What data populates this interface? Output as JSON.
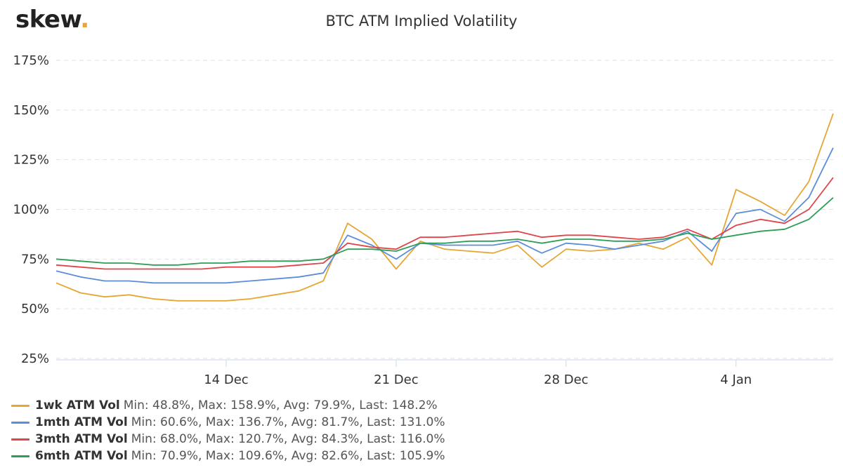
{
  "brand": {
    "name": "skew",
    "dot": "."
  },
  "chart_data": {
    "type": "line",
    "title": "BTC ATM Implied Volatility",
    "xlabel": "",
    "ylabel": "",
    "x_range": [
      "2020-12-07",
      "2021-01-08"
    ],
    "ylim": [
      25,
      175
    ],
    "yticks": [
      25,
      50,
      75,
      100,
      125,
      150,
      175
    ],
    "ytick_labels": [
      "25%",
      "50%",
      "75%",
      "100%",
      "125%",
      "150%",
      "175%"
    ],
    "xticks": [
      {
        "date": "2020-12-14",
        "label": "14 Dec"
      },
      {
        "date": "2020-12-21",
        "label": "21 Dec"
      },
      {
        "date": "2020-12-28",
        "label": "28 Dec"
      },
      {
        "date": "2021-01-04",
        "label": "4 Jan"
      }
    ],
    "grid": "horizontal-dashed",
    "legend_position": "bottom-left",
    "series": [
      {
        "name": "1wk ATM Vol",
        "color": "#e6a634",
        "stats": "Min: 48.8%, Max: 158.9%, Avg: 79.9%, Last: 148.2%",
        "x": [
          "2020-12-07",
          "2020-12-08",
          "2020-12-09",
          "2020-12-10",
          "2020-12-11",
          "2020-12-12",
          "2020-12-13",
          "2020-12-14",
          "2020-12-15",
          "2020-12-16",
          "2020-12-17",
          "2020-12-18",
          "2020-12-19",
          "2020-12-20",
          "2020-12-21",
          "2020-12-22",
          "2020-12-23",
          "2020-12-24",
          "2020-12-25",
          "2020-12-26",
          "2020-12-27",
          "2020-12-28",
          "2020-12-29",
          "2020-12-30",
          "2020-12-31",
          "2021-01-01",
          "2021-01-02",
          "2021-01-03",
          "2021-01-04",
          "2021-01-05",
          "2021-01-06",
          "2021-01-07",
          "2021-01-08"
        ],
        "values": [
          63,
          58,
          56,
          57,
          55,
          54,
          54,
          54,
          55,
          57,
          59,
          64,
          93,
          85,
          70,
          84,
          80,
          79,
          78,
          82,
          71,
          80,
          79,
          80,
          83,
          80,
          86,
          72,
          110,
          104,
          97,
          114,
          148.2
        ]
      },
      {
        "name": "1mth ATM Vol",
        "color": "#5b8dd9",
        "stats": "Min: 60.6%, Max: 136.7%, Avg: 81.7%, Last: 131.0%",
        "x": [
          "2020-12-07",
          "2020-12-08",
          "2020-12-09",
          "2020-12-10",
          "2020-12-11",
          "2020-12-12",
          "2020-12-13",
          "2020-12-14",
          "2020-12-15",
          "2020-12-16",
          "2020-12-17",
          "2020-12-18",
          "2020-12-19",
          "2020-12-20",
          "2020-12-21",
          "2020-12-22",
          "2020-12-23",
          "2020-12-24",
          "2020-12-25",
          "2020-12-26",
          "2020-12-27",
          "2020-12-28",
          "2020-12-29",
          "2020-12-30",
          "2020-12-31",
          "2021-01-01",
          "2021-01-02",
          "2021-01-03",
          "2021-01-04",
          "2021-01-05",
          "2021-01-06",
          "2021-01-07",
          "2021-01-08"
        ],
        "values": [
          69,
          66,
          64,
          64,
          63,
          63,
          63,
          63,
          64,
          65,
          66,
          68,
          87,
          82,
          75,
          83,
          82,
          82,
          82,
          84,
          78,
          83,
          82,
          80,
          82,
          84,
          89,
          79,
          98,
          100,
          94,
          106,
          131.0
        ]
      },
      {
        "name": "3mth ATM Vol",
        "color": "#e0454a",
        "stats": "Min: 68.0%, Max: 120.7%, Avg: 84.3%, Last: 116.0%",
        "x": [
          "2020-12-07",
          "2020-12-08",
          "2020-12-09",
          "2020-12-10",
          "2020-12-11",
          "2020-12-12",
          "2020-12-13",
          "2020-12-14",
          "2020-12-15",
          "2020-12-16",
          "2020-12-17",
          "2020-12-18",
          "2020-12-19",
          "2020-12-20",
          "2020-12-21",
          "2020-12-22",
          "2020-12-23",
          "2020-12-24",
          "2020-12-25",
          "2020-12-26",
          "2020-12-27",
          "2020-12-28",
          "2020-12-29",
          "2020-12-30",
          "2020-12-31",
          "2021-01-01",
          "2021-01-02",
          "2021-01-03",
          "2021-01-04",
          "2021-01-05",
          "2021-01-06",
          "2021-01-07",
          "2021-01-08"
        ],
        "values": [
          72,
          71,
          70,
          70,
          70,
          70,
          70,
          71,
          71,
          71,
          72,
          73,
          83,
          81,
          80,
          86,
          86,
          87,
          88,
          89,
          86,
          87,
          87,
          86,
          85,
          86,
          90,
          85,
          92,
          95,
          93,
          100,
          116.0
        ]
      },
      {
        "name": "6mth ATM Vol",
        "color": "#2e9e57",
        "stats": "Min: 70.9%, Max: 109.6%, Avg: 82.6%, Last: 105.9%",
        "x": [
          "2020-12-07",
          "2020-12-08",
          "2020-12-09",
          "2020-12-10",
          "2020-12-11",
          "2020-12-12",
          "2020-12-13",
          "2020-12-14",
          "2020-12-15",
          "2020-12-16",
          "2020-12-17",
          "2020-12-18",
          "2020-12-19",
          "2020-12-20",
          "2020-12-21",
          "2020-12-22",
          "2020-12-23",
          "2020-12-24",
          "2020-12-25",
          "2020-12-26",
          "2020-12-27",
          "2020-12-28",
          "2020-12-29",
          "2020-12-30",
          "2020-12-31",
          "2021-01-01",
          "2021-01-02",
          "2021-01-03",
          "2021-01-04",
          "2021-01-05",
          "2021-01-06",
          "2021-01-07",
          "2021-01-08"
        ],
        "values": [
          75,
          74,
          73,
          73,
          72,
          72,
          73,
          73,
          74,
          74,
          74,
          75,
          80,
          80,
          79,
          83,
          83,
          84,
          84,
          85,
          83,
          85,
          85,
          84,
          84,
          85,
          88,
          85,
          87,
          89,
          90,
          95,
          105.9
        ]
      }
    ]
  }
}
